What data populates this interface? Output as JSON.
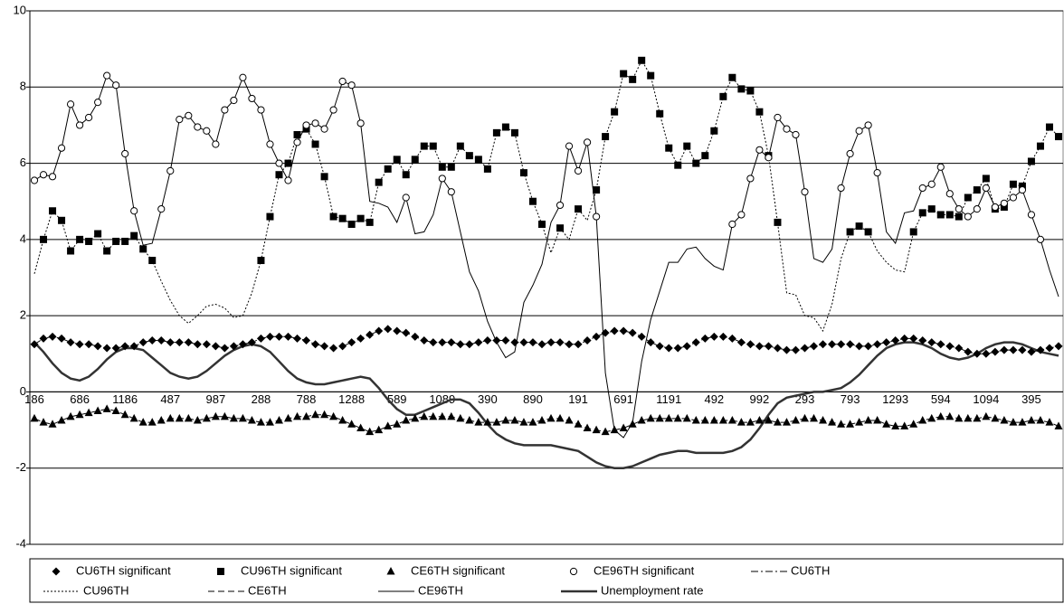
{
  "chart_data": {
    "type": "line",
    "categories": [
      "186",
      null,
      null,
      null,
      null,
      "686",
      null,
      null,
      null,
      null,
      "1186",
      null,
      null,
      null,
      null,
      "487",
      null,
      null,
      null,
      null,
      "987",
      null,
      null,
      null,
      null,
      "288",
      null,
      null,
      null,
      null,
      "788",
      null,
      null,
      null,
      null,
      "1288",
      null,
      null,
      null,
      null,
      "589",
      null,
      null,
      null,
      null,
      "1089",
      null,
      null,
      null,
      null,
      "390",
      null,
      null,
      null,
      null,
      "890",
      null,
      null,
      null,
      null,
      "191",
      null,
      null,
      null,
      null,
      "691",
      null,
      null,
      null,
      null,
      "1191",
      null,
      null,
      null,
      null,
      "492",
      null,
      null,
      null,
      null,
      "992",
      null,
      null,
      null,
      null,
      "293",
      null,
      null,
      null,
      null,
      "793",
      null,
      null,
      null,
      null,
      "1293",
      null,
      null,
      null,
      null,
      "594",
      null,
      null,
      null,
      null,
      "1094",
      null,
      null,
      null,
      null,
      "395",
      null,
      null,
      null
    ],
    "ylim": [
      -4,
      10
    ],
    "yticks": [
      -4,
      -2,
      0,
      2,
      4,
      6,
      8,
      10
    ],
    "grid": true,
    "series": [
      {
        "name": "CU6TH significant",
        "color": "#000000",
        "marker": "diamond",
        "line": "none",
        "values": [
          1.25,
          1.4,
          1.45,
          1.4,
          1.3,
          1.25,
          1.25,
          1.2,
          1.15,
          1.15,
          1.2,
          1.2,
          1.3,
          1.35,
          1.35,
          1.3,
          1.3,
          1.3,
          1.25,
          1.25,
          1.2,
          1.15,
          1.2,
          1.25,
          1.3,
          1.4,
          1.45,
          1.45,
          1.45,
          1.4,
          1.35,
          1.25,
          1.2,
          1.15,
          1.2,
          1.3,
          1.4,
          1.5,
          1.6,
          1.65,
          1.6,
          1.55,
          1.45,
          1.35,
          1.3,
          1.3,
          1.3,
          1.25,
          1.25,
          1.3,
          1.35,
          1.35,
          1.35,
          1.3,
          1.3,
          1.3,
          1.25,
          1.3,
          1.3,
          1.25,
          1.25,
          1.35,
          1.45,
          1.55,
          1.6,
          1.6,
          1.55,
          1.45,
          1.3,
          1.2,
          1.15,
          1.15,
          1.2,
          1.3,
          1.4,
          1.45,
          1.45,
          1.4,
          1.3,
          1.25,
          1.2,
          1.2,
          1.15,
          1.1,
          1.1,
          1.15,
          1.2,
          1.25,
          1.25,
          1.25,
          1.25,
          1.2,
          1.2,
          1.25,
          1.3,
          1.35,
          1.4,
          1.4,
          1.35,
          1.3,
          1.25,
          1.2,
          1.15,
          1.05,
          1.0,
          1.0,
          1.05,
          1.1,
          1.1,
          1.1,
          1.05,
          1.1,
          1.15,
          1.2
        ]
      },
      {
        "name": "CU96TH significant",
        "color": "#000000",
        "marker": "square",
        "line": "none",
        "values": [
          null,
          4.0,
          4.75,
          4.5,
          3.7,
          4.0,
          3.95,
          4.15,
          3.7,
          3.95,
          3.95,
          4.1,
          3.75,
          3.45,
          null,
          null,
          null,
          null,
          null,
          null,
          null,
          null,
          null,
          null,
          null,
          3.45,
          4.6,
          5.7,
          6.0,
          6.75,
          6.9,
          6.5,
          5.65,
          4.6,
          4.55,
          4.4,
          4.55,
          4.45,
          5.5,
          5.85,
          6.1,
          5.7,
          6.1,
          6.45,
          6.45,
          5.9,
          5.9,
          6.45,
          6.2,
          6.1,
          5.85,
          6.8,
          6.95,
          6.8,
          5.75,
          5.0,
          4.4,
          null,
          4.3,
          null,
          4.8,
          null,
          5.3,
          6.7,
          7.35,
          8.35,
          8.2,
          8.7,
          8.3,
          7.3,
          6.4,
          5.95,
          6.45,
          6.0,
          6.2,
          6.85,
          7.75,
          8.25,
          7.95,
          7.9,
          7.35,
          6.2,
          4.45,
          null,
          null,
          null,
          null,
          null,
          null,
          null,
          4.2,
          4.35,
          4.2,
          null,
          null,
          null,
          null,
          4.2,
          4.7,
          4.8,
          4.65,
          4.65,
          4.6,
          5.1,
          5.3,
          5.6,
          4.8,
          4.85,
          5.45,
          5.4,
          6.05,
          6.45,
          6.95,
          6.7
        ]
      },
      {
        "name": "CE6TH significant",
        "color": "#000000",
        "marker": "triangle",
        "line": "none",
        "values": [
          -0.7,
          -0.8,
          -0.85,
          -0.75,
          -0.65,
          -0.6,
          -0.55,
          -0.5,
          -0.45,
          -0.5,
          -0.6,
          -0.7,
          -0.8,
          -0.8,
          -0.75,
          -0.7,
          -0.7,
          -0.7,
          -0.75,
          -0.7,
          -0.65,
          -0.65,
          -0.7,
          -0.7,
          -0.75,
          -0.8,
          -0.8,
          -0.75,
          -0.7,
          -0.65,
          -0.65,
          -0.6,
          -0.6,
          -0.65,
          -0.75,
          -0.85,
          -0.95,
          -1.05,
          -1.0,
          -0.9,
          -0.85,
          -0.75,
          -0.7,
          -0.65,
          -0.65,
          -0.65,
          -0.65,
          -0.7,
          -0.75,
          -0.8,
          -0.8,
          -0.8,
          -0.75,
          -0.75,
          -0.8,
          -0.8,
          -0.75,
          -0.7,
          -0.7,
          -0.75,
          -0.85,
          -0.95,
          -1.0,
          -1.05,
          -1.0,
          -0.95,
          -0.85,
          -0.75,
          -0.7,
          -0.7,
          -0.7,
          -0.7,
          -0.7,
          -0.75,
          -0.75,
          -0.75,
          -0.75,
          -0.75,
          -0.8,
          -0.8,
          -0.75,
          -0.75,
          -0.8,
          -0.8,
          -0.75,
          -0.7,
          -0.7,
          -0.75,
          -0.8,
          -0.85,
          -0.85,
          -0.8,
          -0.75,
          -0.75,
          -0.85,
          -0.9,
          -0.9,
          -0.85,
          -0.75,
          -0.7,
          -0.65,
          -0.65,
          -0.7,
          -0.7,
          -0.7,
          -0.65,
          -0.7,
          -0.75,
          -0.8,
          -0.8,
          -0.75,
          -0.75,
          -0.8,
          -0.9
        ]
      },
      {
        "name": "CE96TH significant",
        "color": "#000000",
        "marker": "circle",
        "line": "none",
        "values": [
          5.55,
          5.7,
          5.65,
          6.4,
          7.55,
          7.0,
          7.2,
          7.6,
          8.3,
          8.05,
          6.25,
          4.75,
          null,
          null,
          4.8,
          5.8,
          7.15,
          7.25,
          6.95,
          6.85,
          6.5,
          7.4,
          7.65,
          8.25,
          7.7,
          7.4,
          6.5,
          6.0,
          5.55,
          6.55,
          7.0,
          7.05,
          6.9,
          7.4,
          8.15,
          8.05,
          7.05,
          null,
          null,
          null,
          null,
          5.1,
          null,
          null,
          null,
          5.6,
          5.25,
          null,
          null,
          null,
          null,
          null,
          null,
          null,
          null,
          null,
          null,
          null,
          4.9,
          6.45,
          5.8,
          6.55,
          4.6,
          null,
          null,
          null,
          null,
          null,
          null,
          null,
          null,
          null,
          null,
          null,
          null,
          null,
          null,
          4.4,
          4.65,
          5.6,
          6.35,
          6.15,
          7.2,
          6.9,
          6.75,
          5.25,
          null,
          null,
          null,
          5.35,
          6.25,
          6.85,
          7.0,
          5.75,
          null,
          null,
          null,
          null,
          5.35,
          5.45,
          5.9,
          5.2,
          4.8,
          4.6,
          4.8,
          5.35,
          4.85,
          4.95,
          5.1,
          5.3,
          4.65,
          4.0,
          null,
          null
        ]
      },
      {
        "name": "CU6TH",
        "color": "#000000",
        "marker": "none",
        "line": "dashdot",
        "values": [
          1.25,
          1.4,
          1.45,
          1.4,
          1.3,
          1.25,
          1.25,
          1.2,
          1.15,
          1.15,
          1.2,
          1.2,
          1.3,
          1.35,
          1.35,
          1.3,
          1.3,
          1.3,
          1.25,
          1.25,
          1.2,
          1.15,
          1.2,
          1.25,
          1.3,
          1.4,
          1.45,
          1.45,
          1.45,
          1.4,
          1.35,
          1.25,
          1.2,
          1.15,
          1.2,
          1.3,
          1.4,
          1.5,
          1.6,
          1.65,
          1.6,
          1.55,
          1.45,
          1.35,
          1.3,
          1.3,
          1.3,
          1.25,
          1.25,
          1.3,
          1.35,
          1.35,
          1.35,
          1.3,
          1.3,
          1.3,
          1.25,
          1.3,
          1.3,
          1.25,
          1.25,
          1.35,
          1.45,
          1.55,
          1.6,
          1.6,
          1.55,
          1.45,
          1.3,
          1.2,
          1.15,
          1.15,
          1.2,
          1.3,
          1.4,
          1.45,
          1.45,
          1.4,
          1.3,
          1.25,
          1.2,
          1.2,
          1.15,
          1.1,
          1.1,
          1.15,
          1.2,
          1.25,
          1.25,
          1.25,
          1.25,
          1.2,
          1.2,
          1.25,
          1.3,
          1.35,
          1.4,
          1.4,
          1.35,
          1.3,
          1.25,
          1.2,
          1.15,
          1.05,
          1.0,
          1.0,
          1.05,
          1.1,
          1.1,
          1.1,
          1.05,
          1.1,
          1.15,
          1.2
        ]
      },
      {
        "name": "CU96TH",
        "color": "#000000",
        "marker": "none",
        "line": "dotted",
        "values": [
          3.1,
          4.0,
          4.75,
          4.5,
          3.7,
          4.0,
          3.95,
          4.15,
          3.7,
          3.95,
          3.95,
          4.1,
          3.75,
          3.45,
          2.9,
          2.4,
          2.0,
          1.8,
          2.0,
          2.25,
          2.3,
          2.2,
          1.95,
          2.0,
          2.6,
          3.45,
          4.6,
          5.7,
          6.0,
          6.75,
          6.9,
          6.5,
          5.65,
          4.6,
          4.55,
          4.4,
          4.55,
          4.45,
          5.5,
          5.85,
          6.1,
          5.7,
          6.1,
          6.45,
          6.45,
          5.9,
          5.9,
          6.45,
          6.2,
          6.1,
          5.85,
          6.8,
          6.95,
          6.8,
          5.75,
          5.0,
          4.4,
          3.65,
          4.3,
          4.0,
          4.8,
          4.5,
          5.3,
          6.7,
          7.35,
          8.35,
          8.2,
          8.7,
          8.3,
          7.3,
          6.4,
          5.95,
          6.45,
          6.0,
          6.2,
          6.85,
          7.75,
          8.25,
          7.95,
          7.9,
          7.35,
          6.2,
          4.45,
          2.6,
          2.55,
          2.0,
          1.95,
          1.6,
          2.3,
          3.5,
          4.2,
          4.35,
          4.2,
          3.7,
          3.4,
          3.2,
          3.15,
          4.2,
          4.7,
          4.8,
          4.65,
          4.65,
          4.6,
          5.1,
          5.3,
          5.6,
          4.8,
          4.85,
          5.45,
          5.4,
          6.05,
          6.45,
          6.95,
          6.7
        ]
      },
      {
        "name": "CE6TH",
        "color": "#000000",
        "marker": "none",
        "line": "dashed",
        "values": [
          -0.7,
          -0.8,
          -0.85,
          -0.75,
          -0.65,
          -0.6,
          -0.55,
          -0.5,
          -0.45,
          -0.5,
          -0.6,
          -0.7,
          -0.8,
          -0.8,
          -0.75,
          -0.7,
          -0.7,
          -0.7,
          -0.75,
          -0.7,
          -0.65,
          -0.65,
          -0.7,
          -0.7,
          -0.75,
          -0.8,
          -0.8,
          -0.75,
          -0.7,
          -0.65,
          -0.65,
          -0.6,
          -0.6,
          -0.65,
          -0.75,
          -0.85,
          -0.95,
          -1.05,
          -1.0,
          -0.9,
          -0.85,
          -0.75,
          -0.7,
          -0.65,
          -0.65,
          -0.65,
          -0.65,
          -0.7,
          -0.75,
          -0.8,
          -0.8,
          -0.8,
          -0.75,
          -0.75,
          -0.8,
          -0.8,
          -0.75,
          -0.7,
          -0.7,
          -0.75,
          -0.85,
          -0.95,
          -1.0,
          -1.05,
          -1.0,
          -0.95,
          -0.85,
          -0.75,
          -0.7,
          -0.7,
          -0.7,
          -0.7,
          -0.7,
          -0.75,
          -0.75,
          -0.75,
          -0.75,
          -0.75,
          -0.8,
          -0.8,
          -0.75,
          -0.75,
          -0.8,
          -0.8,
          -0.75,
          -0.7,
          -0.7,
          -0.75,
          -0.8,
          -0.85,
          -0.85,
          -0.8,
          -0.75,
          -0.75,
          -0.85,
          -0.9,
          -0.9,
          -0.85,
          -0.75,
          -0.7,
          -0.65,
          -0.65,
          -0.7,
          -0.7,
          -0.7,
          -0.65,
          -0.7,
          -0.75,
          -0.8,
          -0.8,
          -0.75,
          -0.75,
          -0.8,
          -0.9
        ]
      },
      {
        "name": "CE96TH",
        "color": "#000000",
        "marker": "none",
        "line": "thin",
        "values": [
          5.55,
          5.7,
          5.65,
          6.4,
          7.55,
          7.0,
          7.2,
          7.6,
          8.3,
          8.05,
          6.25,
          4.75,
          3.85,
          3.9,
          4.8,
          5.8,
          7.15,
          7.25,
          6.95,
          6.85,
          6.5,
          7.4,
          7.65,
          8.25,
          7.7,
          7.4,
          6.5,
          6.0,
          5.55,
          6.55,
          7.0,
          7.05,
          6.9,
          7.4,
          8.15,
          8.05,
          7.05,
          5.0,
          4.95,
          4.85,
          4.45,
          5.1,
          4.15,
          4.2,
          4.65,
          5.6,
          5.25,
          4.2,
          3.15,
          2.65,
          1.85,
          1.3,
          0.9,
          1.05,
          2.35,
          2.8,
          3.35,
          4.45,
          4.9,
          6.45,
          5.8,
          6.55,
          4.6,
          0.5,
          -1.0,
          -1.2,
          -0.8,
          0.8,
          1.9,
          2.65,
          3.4,
          3.4,
          3.75,
          3.8,
          3.5,
          3.3,
          3.2,
          4.4,
          4.65,
          5.6,
          6.35,
          6.15,
          7.2,
          6.9,
          6.75,
          5.25,
          3.5,
          3.4,
          3.75,
          5.35,
          6.25,
          6.85,
          7.0,
          5.75,
          4.2,
          3.9,
          4.7,
          4.75,
          5.35,
          5.45,
          5.9,
          5.2,
          4.8,
          4.6,
          4.8,
          5.35,
          4.85,
          4.95,
          5.1,
          5.3,
          4.65,
          4.0,
          3.2,
          2.5
        ]
      },
      {
        "name": "Unemployment rate",
        "color": "#333333",
        "marker": "none",
        "line": "thick",
        "values": [
          1.3,
          1.05,
          0.75,
          0.5,
          0.35,
          0.3,
          0.4,
          0.6,
          0.85,
          1.05,
          1.15,
          1.15,
          1.1,
          0.9,
          0.7,
          0.5,
          0.4,
          0.35,
          0.4,
          0.55,
          0.75,
          0.95,
          1.1,
          1.2,
          1.25,
          1.2,
          1.05,
          0.8,
          0.55,
          0.35,
          0.25,
          0.2,
          0.2,
          0.25,
          0.3,
          0.35,
          0.4,
          0.35,
          0.1,
          -0.2,
          -0.45,
          -0.6,
          -0.6,
          -0.5,
          -0.4,
          -0.3,
          -0.2,
          -0.2,
          -0.3,
          -0.55,
          -0.85,
          -1.1,
          -1.25,
          -1.35,
          -1.4,
          -1.4,
          -1.4,
          -1.4,
          -1.45,
          -1.5,
          -1.55,
          -1.7,
          -1.85,
          -1.95,
          -2.0,
          -2.0,
          -1.95,
          -1.85,
          -1.75,
          -1.65,
          -1.6,
          -1.55,
          -1.55,
          -1.6,
          -1.6,
          -1.6,
          -1.6,
          -1.55,
          -1.45,
          -1.25,
          -0.95,
          -0.6,
          -0.3,
          -0.15,
          -0.1,
          -0.05,
          0,
          0,
          0.05,
          0.1,
          0.25,
          0.45,
          0.7,
          0.95,
          1.15,
          1.25,
          1.3,
          1.3,
          1.25,
          1.15,
          1.0,
          0.9,
          0.85,
          0.9,
          1.0,
          1.15,
          1.25,
          1.3,
          1.3,
          1.25,
          1.15,
          1.05,
          1.0,
          0.95
        ]
      }
    ]
  }
}
